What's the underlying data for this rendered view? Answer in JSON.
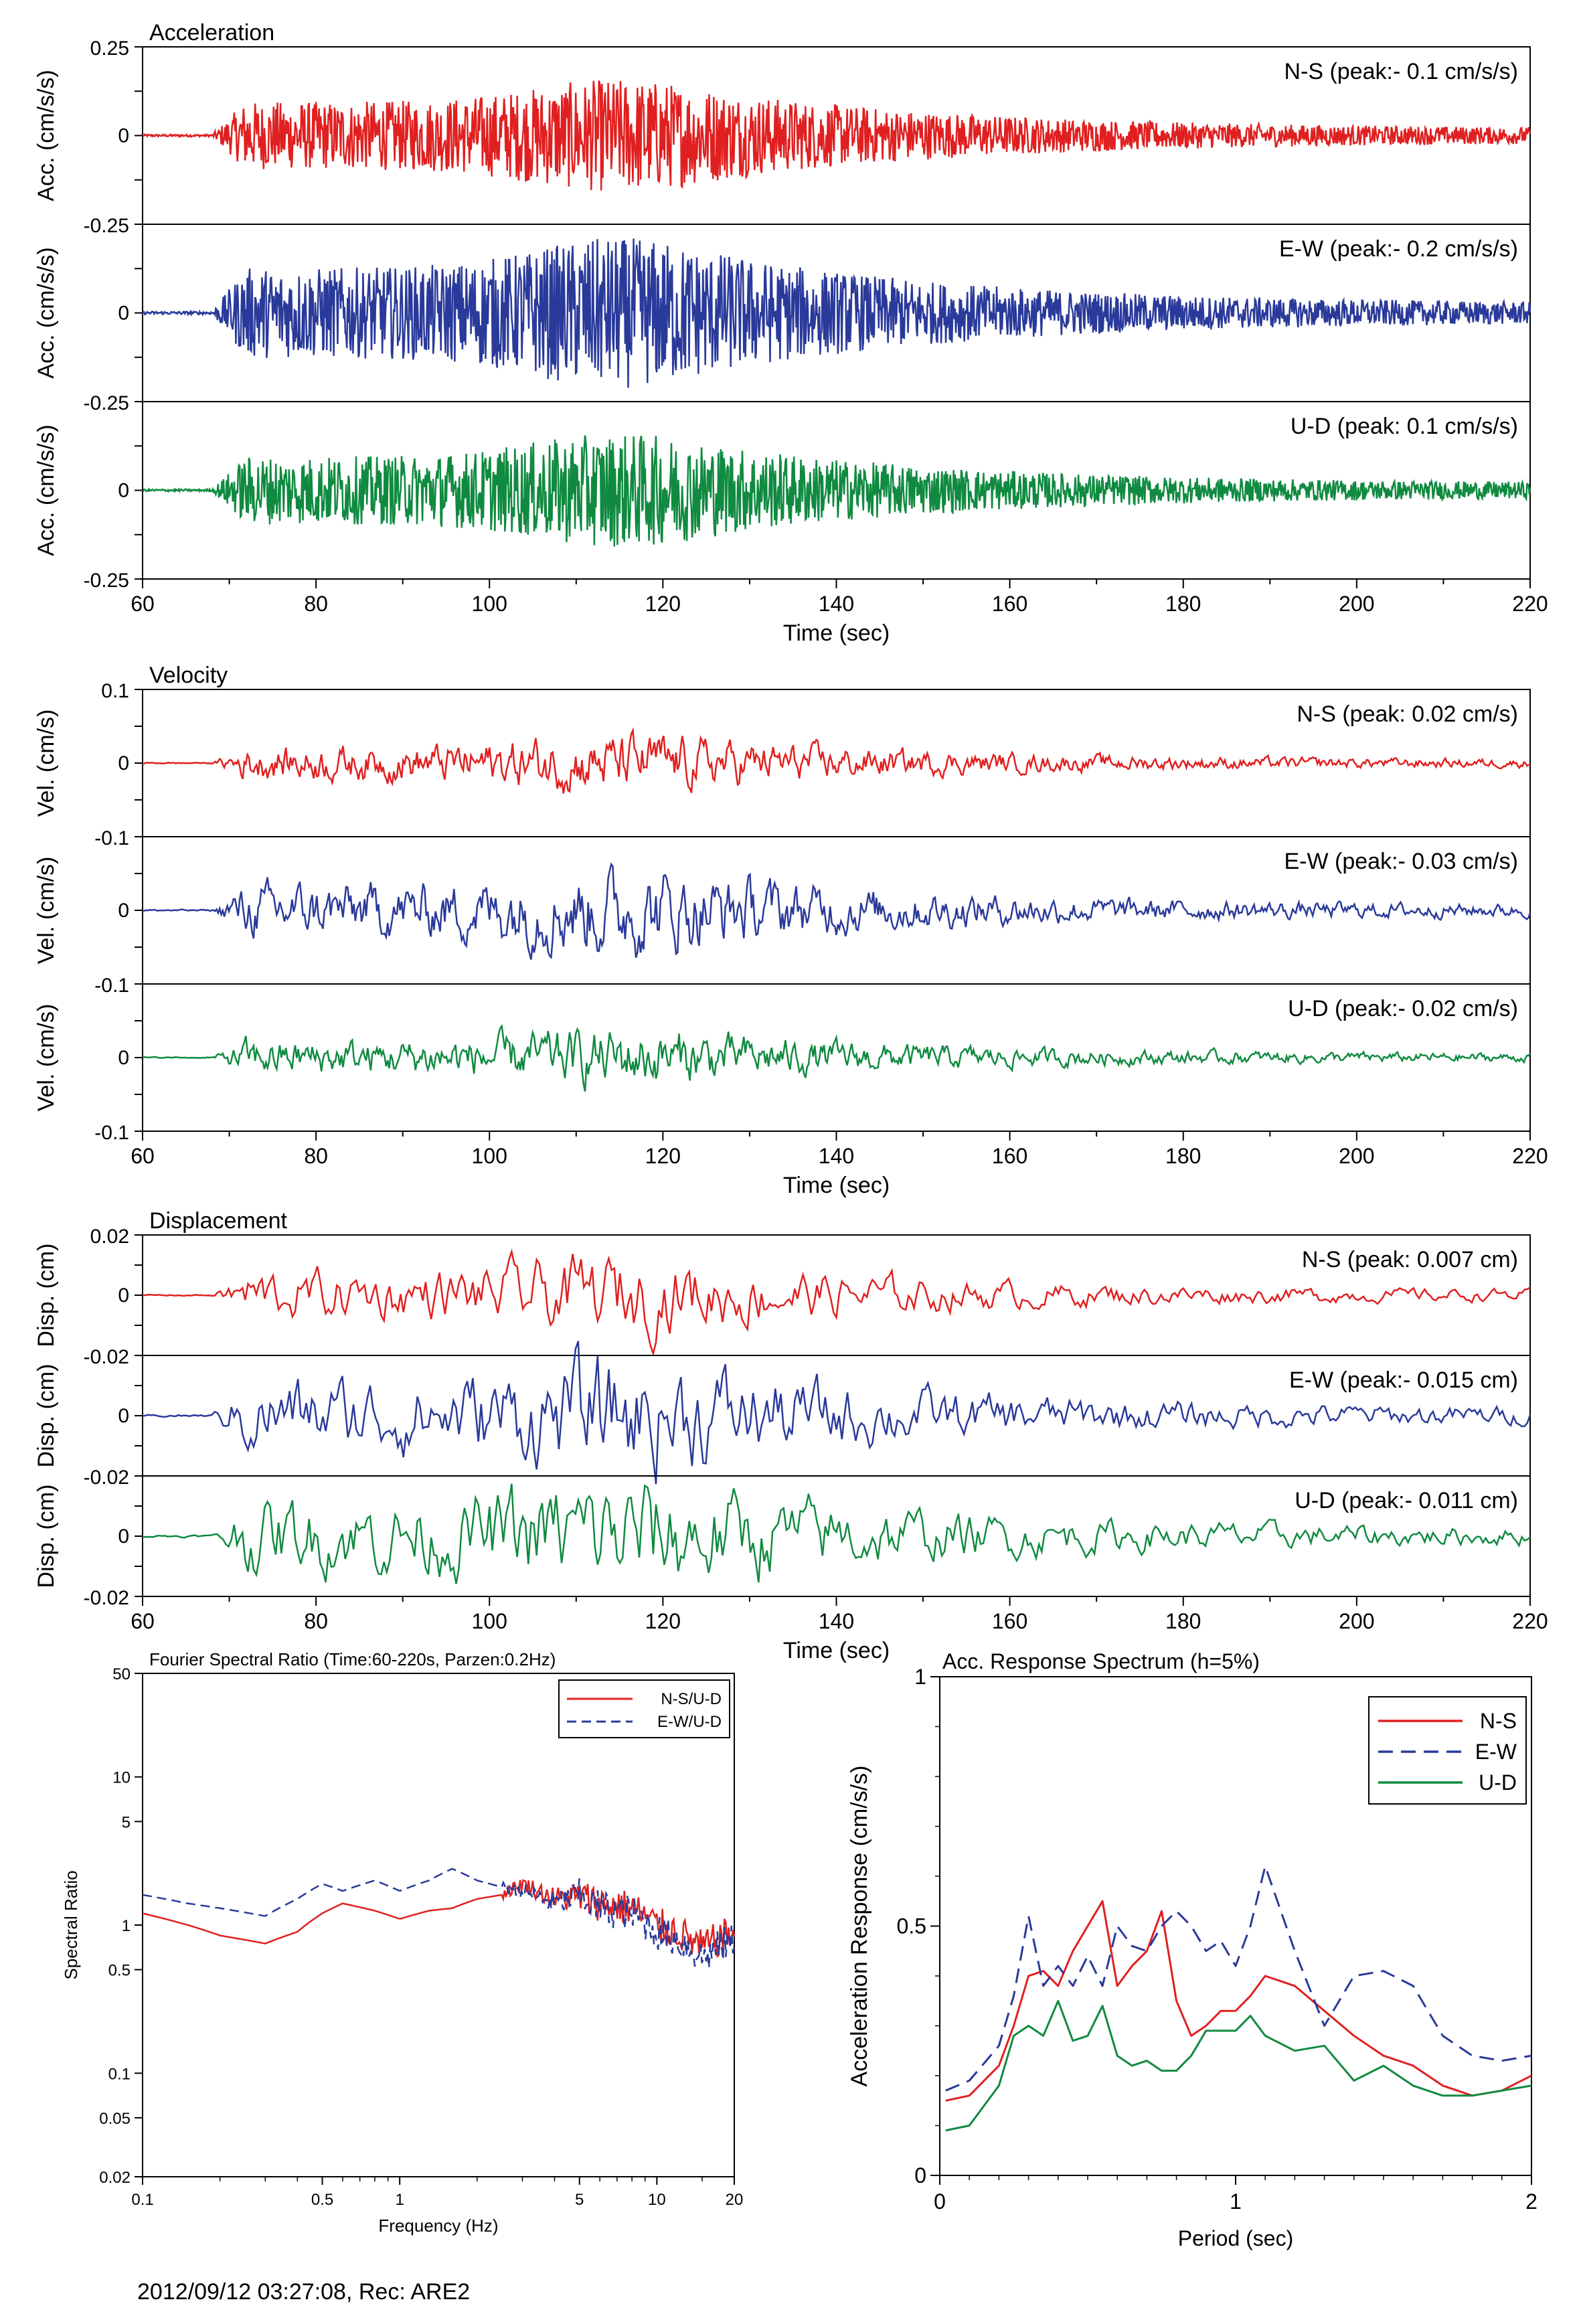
{
  "footer": "2012/09/12 03:27:08, Rec: ARE2",
  "colors": {
    "ns": "#e02020",
    "ew": "#2a3a9a",
    "ud": "#108a40"
  },
  "time_groups": [
    {
      "title": "Acceleration",
      "xlabel": "Time (sec)",
      "ylabel": "Acc. (cm/s/s)",
      "xlim": [
        60,
        220
      ],
      "xticks": [
        "60",
        "80",
        "100",
        "120",
        "140",
        "160",
        "180",
        "200",
        "220"
      ],
      "ylim": [
        -0.25,
        0.25
      ],
      "yticks": [
        "0.25",
        "0",
        "-0.25"
      ],
      "amp": 0.1,
      "traces": [
        {
          "name": "N-S",
          "label": "N-S (peak:- 0.1 cm/s/s)",
          "peak": 0.1,
          "color": "#e02020"
        },
        {
          "name": "E-W",
          "label": "E-W (peak:- 0.2 cm/s/s)",
          "peak": 0.2,
          "color": "#2a3a9a"
        },
        {
          "name": "U-D",
          "label": "U-D (peak: 0.1 cm/s/s)",
          "peak": 0.1,
          "color": "#108a40"
        }
      ],
      "inner_ticks": [
        "-0.25",
        "-0.25"
      ]
    },
    {
      "title": "Velocity",
      "xlabel": "Time (sec)",
      "ylabel": "Vel. (cm/s)",
      "xlim": [
        60,
        220
      ],
      "xticks": [
        "60",
        "80",
        "100",
        "120",
        "140",
        "160",
        "180",
        "200",
        "220"
      ],
      "ylim": [
        -0.1,
        0.1
      ],
      "yticks": [
        "0.1",
        "0",
        "-0.1"
      ],
      "amp": 0.02,
      "traces": [
        {
          "name": "N-S",
          "label": "N-S (peak: 0.02 cm/s)",
          "peak": 0.02,
          "color": "#e02020"
        },
        {
          "name": "E-W",
          "label": "E-W (peak:- 0.03 cm/s)",
          "peak": 0.03,
          "color": "#2a3a9a"
        },
        {
          "name": "U-D",
          "label": "U-D (peak:- 0.02 cm/s)",
          "peak": 0.02,
          "color": "#108a40"
        }
      ],
      "inner_ticks": [
        "-0.1",
        "-0.1"
      ]
    },
    {
      "title": "Displacement",
      "xlabel": "Time (sec)",
      "ylabel": "Disp. (cm)",
      "xlim": [
        60,
        220
      ],
      "xticks": [
        "60",
        "80",
        "100",
        "120",
        "140",
        "160",
        "180",
        "200",
        "220"
      ],
      "ylim": [
        -0.02,
        0.02
      ],
      "yticks": [
        "0.02",
        "0",
        "-0.02"
      ],
      "amp": 0.007,
      "traces": [
        {
          "name": "N-S",
          "label": "N-S (peak: 0.007 cm)",
          "peak": 0.007,
          "color": "#e02020"
        },
        {
          "name": "E-W",
          "label": "E-W (peak:- 0.015 cm)",
          "peak": 0.015,
          "color": "#2a3a9a"
        },
        {
          "name": "U-D",
          "label": "U-D (peak:- 0.011 cm)",
          "peak": 0.011,
          "color": "#108a40"
        }
      ],
      "inner_ticks": [
        "-0.02",
        "-0.02"
      ]
    }
  ],
  "chart_data": [
    {
      "type": "line",
      "title": "Fourier Spectral Ratio (Time:60-220s, Parzen:0.2Hz)",
      "xlabel": "Frequency (Hz)",
      "ylabel": "Spectral Ratio",
      "xscale": "log",
      "yscale": "log",
      "xlim": [
        0.1,
        20
      ],
      "ylim": [
        0.02,
        50
      ],
      "xticks": [
        "0.1",
        "0.5",
        "1",
        "5",
        "10",
        "20"
      ],
      "yticks": [
        "50",
        "10",
        "5",
        "1",
        "0.5",
        "0.1",
        "0.05",
        "0.02"
      ],
      "legend": "top-right",
      "series": [
        {
          "name": "N-S/U-D",
          "color": "#e02020",
          "dash": false,
          "x": [
            0.1,
            0.15,
            0.2,
            0.3,
            0.4,
            0.5,
            0.6,
            0.8,
            1,
            1.3,
            1.6,
            2,
            2.5,
            3,
            4,
            5,
            6,
            8,
            10,
            12,
            15,
            20
          ],
          "y": [
            1.2,
            1.0,
            0.85,
            0.75,
            0.9,
            1.2,
            1.4,
            1.25,
            1.1,
            1.25,
            1.3,
            1.5,
            1.6,
            1.9,
            1.5,
            1.55,
            1.4,
            1.3,
            1.0,
            0.9,
            0.7,
            0.9
          ]
        },
        {
          "name": "E-W/U-D",
          "color": "#2a3a9a",
          "dash": true,
          "x": [
            0.1,
            0.15,
            0.2,
            0.3,
            0.4,
            0.5,
            0.6,
            0.8,
            1,
            1.3,
            1.6,
            2,
            2.5,
            3,
            4,
            5,
            6,
            8,
            10,
            12,
            15,
            20
          ],
          "y": [
            1.6,
            1.4,
            1.3,
            1.15,
            1.5,
            1.9,
            1.7,
            2.0,
            1.7,
            2.0,
            2.4,
            2.0,
            1.8,
            1.7,
            1.4,
            1.6,
            1.3,
            1.2,
            0.9,
            0.8,
            0.6,
            0.8
          ]
        }
      ]
    },
    {
      "type": "line",
      "title": "Acc. Response Spectrum (h=5%)",
      "xlabel": "Period (sec)",
      "ylabel": "Acceleration Response (cm/s/s)",
      "xlim": [
        0,
        2
      ],
      "ylim": [
        0,
        1
      ],
      "xticks": [
        "0",
        "1",
        "2"
      ],
      "yticks": [
        "1",
        "0.5",
        "0"
      ],
      "legend": "top-right",
      "series": [
        {
          "name": "N-S",
          "color": "#e02020",
          "dash": false,
          "x": [
            0.02,
            0.1,
            0.2,
            0.25,
            0.3,
            0.35,
            0.4,
            0.45,
            0.5,
            0.55,
            0.6,
            0.65,
            0.7,
            0.75,
            0.8,
            0.85,
            0.9,
            0.95,
            1.0,
            1.05,
            1.1,
            1.2,
            1.3,
            1.4,
            1.5,
            1.6,
            1.7,
            1.8,
            1.9,
            2.0
          ],
          "y": [
            0.15,
            0.16,
            0.22,
            0.3,
            0.4,
            0.41,
            0.38,
            0.45,
            0.5,
            0.55,
            0.38,
            0.42,
            0.45,
            0.53,
            0.35,
            0.28,
            0.3,
            0.33,
            0.33,
            0.36,
            0.4,
            0.38,
            0.33,
            0.28,
            0.24,
            0.22,
            0.18,
            0.16,
            0.17,
            0.2
          ]
        },
        {
          "name": "E-W",
          "color": "#2a3a9a",
          "dash": true,
          "x": [
            0.02,
            0.1,
            0.2,
            0.25,
            0.3,
            0.35,
            0.4,
            0.45,
            0.5,
            0.55,
            0.6,
            0.65,
            0.7,
            0.75,
            0.8,
            0.85,
            0.9,
            0.95,
            1.0,
            1.05,
            1.1,
            1.2,
            1.3,
            1.4,
            1.5,
            1.6,
            1.7,
            1.8,
            1.9,
            2.0
          ],
          "y": [
            0.17,
            0.19,
            0.26,
            0.36,
            0.52,
            0.38,
            0.42,
            0.38,
            0.44,
            0.38,
            0.5,
            0.46,
            0.45,
            0.5,
            0.53,
            0.5,
            0.45,
            0.47,
            0.42,
            0.5,
            0.62,
            0.45,
            0.3,
            0.4,
            0.41,
            0.38,
            0.28,
            0.24,
            0.23,
            0.24
          ]
        },
        {
          "name": "U-D",
          "color": "#108a40",
          "dash": false,
          "x": [
            0.02,
            0.1,
            0.2,
            0.25,
            0.3,
            0.35,
            0.4,
            0.45,
            0.5,
            0.55,
            0.6,
            0.65,
            0.7,
            0.75,
            0.8,
            0.85,
            0.9,
            0.95,
            1.0,
            1.05,
            1.1,
            1.2,
            1.3,
            1.4,
            1.5,
            1.6,
            1.7,
            1.8,
            1.9,
            2.0
          ],
          "y": [
            0.09,
            0.1,
            0.18,
            0.28,
            0.3,
            0.28,
            0.35,
            0.27,
            0.28,
            0.34,
            0.24,
            0.22,
            0.23,
            0.21,
            0.21,
            0.24,
            0.29,
            0.29,
            0.29,
            0.32,
            0.28,
            0.25,
            0.26,
            0.19,
            0.22,
            0.18,
            0.16,
            0.16,
            0.17,
            0.18
          ]
        }
      ]
    }
  ]
}
